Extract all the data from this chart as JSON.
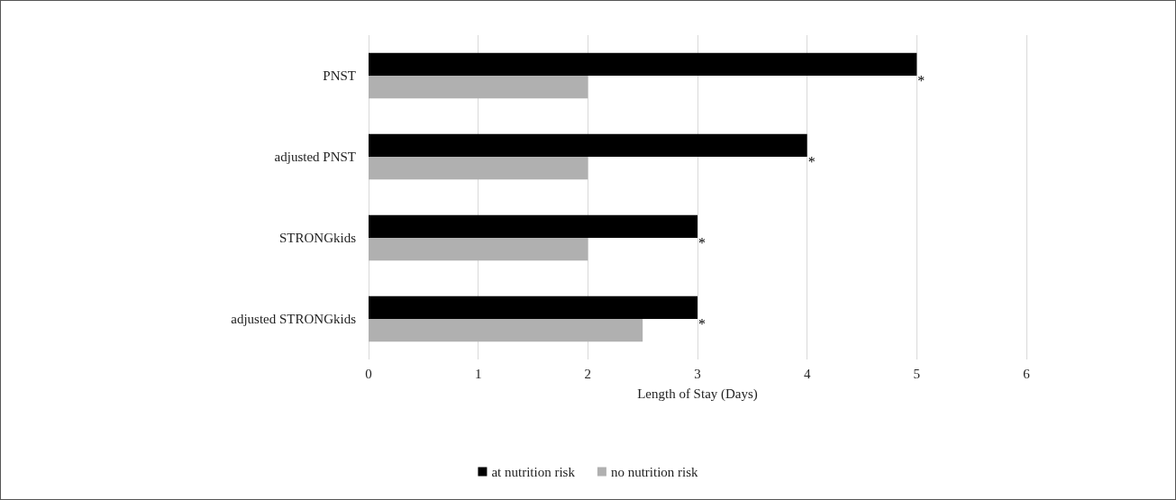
{
  "chart_data": {
    "type": "bar",
    "orientation": "horizontal",
    "xlabel": "Length of Stay (Days)",
    "categories": [
      "PNST",
      "adjusted PNST",
      "STRONGkids",
      "adjusted STRONGkids"
    ],
    "series": [
      {
        "name": "at nutrition risk",
        "color": "#000000",
        "values": [
          5,
          4,
          3,
          3
        ]
      },
      {
        "name": "no nutrition risk",
        "color": "#b0b0b0",
        "values": [
          2,
          2,
          2,
          2.5
        ]
      }
    ],
    "xlim": [
      0,
      6
    ],
    "xticks": [
      0,
      1,
      2,
      3,
      4,
      5,
      6
    ],
    "grid": "x",
    "legend": "bottom",
    "annotations": [
      {
        "text": "*",
        "x": 5,
        "y": "PNST"
      },
      {
        "text": "*",
        "x": 4,
        "y": "adjusted PNST"
      },
      {
        "text": "*",
        "x": 3,
        "y": "STRONGkids"
      },
      {
        "text": "*",
        "x": 3,
        "y": "adjusted STRONGkids"
      }
    ]
  }
}
